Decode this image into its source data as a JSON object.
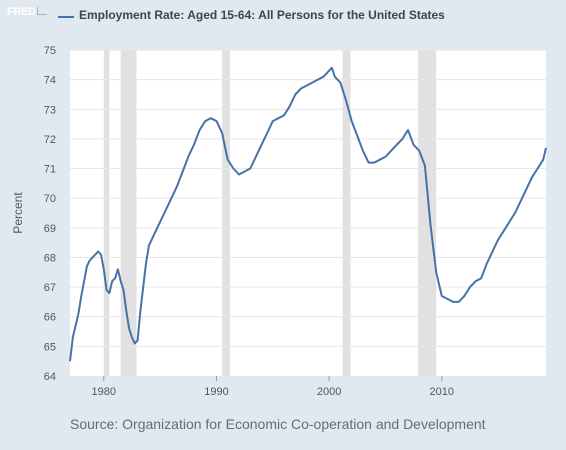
{
  "header": {
    "logo_text": "FRED"
  },
  "footer": {
    "source": "Source: Organization for Economic Co-operation and Development"
  },
  "chart_data": {
    "type": "line",
    "title": "Employment Rate: Aged 15-64: All Persons for the United States",
    "ylabel": "Percent",
    "xlabel": "",
    "xlim": [
      1977.0,
      2019.25
    ],
    "ylim": [
      64,
      75
    ],
    "x_ticks": [
      "1980",
      "1990",
      "2000",
      "2010"
    ],
    "y_ticks": [
      "64",
      "65",
      "66",
      "67",
      "68",
      "69",
      "70",
      "71",
      "72",
      "73",
      "74",
      "75"
    ],
    "grid": true,
    "legend_position": "top-left",
    "colors": {
      "line": "#4572a7",
      "recession": "#e1e1e1",
      "grid": "#e6e6e6",
      "plot_bg": "#ffffff"
    },
    "recessions": [
      [
        1980.0,
        1980.5
      ],
      [
        1981.5,
        1982.9
      ],
      [
        1990.5,
        1991.2
      ],
      [
        2001.2,
        2001.9
      ],
      [
        2007.9,
        2009.5
      ]
    ],
    "series": [
      {
        "name": "Employment Rate: Aged 15-64: All Persons for the United States",
        "x": [
          1977.0,
          1977.25,
          1977.5,
          1977.75,
          1978.0,
          1978.25,
          1978.5,
          1978.75,
          1979.0,
          1979.25,
          1979.5,
          1979.75,
          1980.0,
          1980.25,
          1980.5,
          1980.75,
          1981.0,
          1981.25,
          1981.5,
          1981.75,
          1982.0,
          1982.25,
          1982.5,
          1982.75,
          1983.0,
          1983.25,
          1983.5,
          1983.75,
          1984.0,
          1984.5,
          1985.0,
          1985.5,
          1986.0,
          1986.5,
          1987.0,
          1987.5,
          1988.0,
          1988.5,
          1989.0,
          1989.5,
          1990.0,
          1990.5,
          1991.0,
          1991.5,
          1992.0,
          1992.5,
          1993.0,
          1993.5,
          1994.0,
          1994.5,
          1995.0,
          1995.5,
          1996.0,
          1996.5,
          1997.0,
          1997.5,
          1998.0,
          1998.5,
          1999.0,
          1999.5,
          2000.0,
          2000.25,
          2000.5,
          2001.0,
          2001.5,
          2002.0,
          2002.5,
          2003.0,
          2003.5,
          2004.0,
          2004.5,
          2005.0,
          2005.5,
          2006.0,
          2006.5,
          2007.0,
          2007.5,
          2008.0,
          2008.5,
          2009.0,
          2009.5,
          2010.0,
          2010.5,
          2011.0,
          2011.5,
          2012.0,
          2012.5,
          2013.0,
          2013.5,
          2014.0,
          2014.5,
          2015.0,
          2015.5,
          2016.0,
          2016.5,
          2017.0,
          2017.5,
          2018.0,
          2018.5,
          2019.0,
          2019.25
        ],
        "values": [
          64.5,
          65.3,
          65.7,
          66.1,
          66.7,
          67.2,
          67.7,
          67.9,
          68.0,
          68.1,
          68.2,
          68.1,
          67.6,
          66.9,
          66.8,
          67.2,
          67.3,
          67.6,
          67.2,
          66.9,
          66.2,
          65.6,
          65.3,
          65.1,
          65.2,
          66.2,
          67.0,
          67.8,
          68.4,
          68.8,
          69.2,
          69.6,
          70.0,
          70.4,
          70.9,
          71.4,
          71.8,
          72.3,
          72.6,
          72.7,
          72.6,
          72.2,
          71.3,
          71.0,
          70.8,
          70.9,
          71.0,
          71.4,
          71.8,
          72.2,
          72.6,
          72.7,
          72.8,
          73.1,
          73.5,
          73.7,
          73.8,
          73.9,
          74.0,
          74.1,
          74.3,
          74.4,
          74.1,
          73.9,
          73.3,
          72.6,
          72.1,
          71.6,
          71.2,
          71.2,
          71.3,
          71.4,
          71.6,
          71.8,
          72.0,
          72.3,
          71.8,
          71.6,
          71.1,
          69.1,
          67.5,
          66.7,
          66.6,
          66.5,
          66.5,
          66.7,
          67.0,
          67.2,
          67.3,
          67.8,
          68.2,
          68.6,
          68.9,
          69.2,
          69.5,
          69.9,
          70.3,
          70.7,
          71.0,
          71.3,
          71.7
        ]
      }
    ]
  }
}
